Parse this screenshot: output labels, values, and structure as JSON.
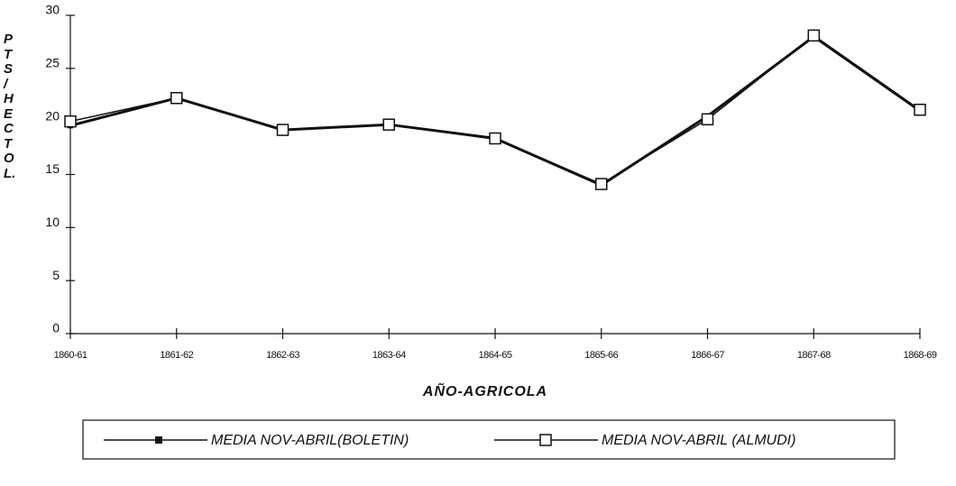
{
  "chart_data": {
    "type": "line",
    "y_label": "PTS / HECTOL.",
    "x_label": "AÑO-AGRICOLA",
    "categories": [
      "1860-61",
      "1861-62",
      "1862-63",
      "1863-64",
      "1864-65",
      "1865-66",
      "1866-67",
      "1867-68",
      "1868-69"
    ],
    "series": [
      {
        "name": "MEDIA NOV-ABRIL(BOLETIN)",
        "color": "#111111",
        "marker": "filled-square",
        "values": [
          19.6,
          22.2,
          19.2,
          19.7,
          18.4,
          14.0,
          20.5,
          28.0,
          21.0
        ]
      },
      {
        "name": "MEDIA NOV-ABRIL (ALMUDI)",
        "color": "#111111",
        "marker": "open-square",
        "values": [
          20.0,
          22.2,
          19.2,
          19.7,
          18.4,
          14.1,
          20.2,
          28.1,
          21.1
        ]
      }
    ],
    "ylim": [
      0,
      30
    ],
    "yticks": [
      0,
      5,
      10,
      15,
      20,
      25,
      30
    ],
    "grid": false
  }
}
